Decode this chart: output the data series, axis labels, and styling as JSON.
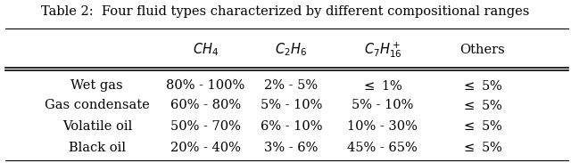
{
  "title": "Table 2:  Four fluid types characterized by different compositional ranges",
  "col_headers": [
    "$CH_4$",
    "$C_2H_6$",
    "$C_7H_{16}^+$",
    "Others"
  ],
  "row_headers": [
    "Wet gas",
    "Gas condensate",
    "Volatile oil",
    "Black oil"
  ],
  "cell_data": [
    [
      "80% - 100%",
      "2% - 5%",
      "$\\leq$ 1%",
      "$\\leq$ 5%"
    ],
    [
      "60% - 80%",
      "5% - 10%",
      "5% - 10%",
      "$\\leq$ 5%"
    ],
    [
      "50% - 70%",
      "6% - 10%",
      "10% - 30%",
      "$\\leq$ 5%"
    ],
    [
      "20% - 40%",
      "3% - 6%",
      "45% - 65%",
      "$\\leq$ 5%"
    ]
  ],
  "background_color": "#ffffff",
  "font_size": 10.5,
  "title_font_size": 10.5
}
